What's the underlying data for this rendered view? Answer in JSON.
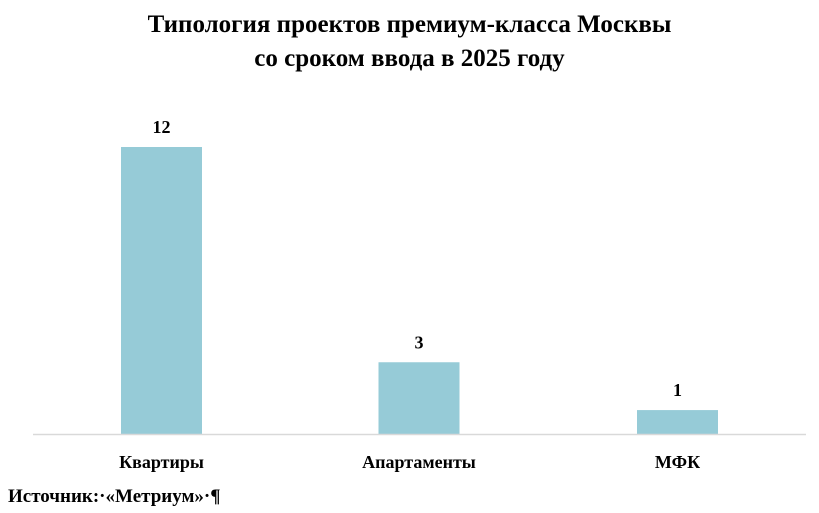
{
  "chart_data": {
    "type": "bar",
    "title_lines": [
      "Типология проектов премиум-класса Москвы",
      "со сроком ввода в 2025 году"
    ],
    "categories": [
      "Квартиры",
      "Апартаменты",
      "МФК"
    ],
    "values": [
      12,
      3,
      1
    ],
    "data_labels": [
      "12",
      "3",
      "1"
    ],
    "xlabel": "",
    "ylabel": "",
    "ylim": [
      0,
      12
    ],
    "grid": false,
    "legend": "none",
    "colors": {
      "bar": "#96CBD7",
      "axis": "#D9D9D9"
    }
  },
  "footer": {
    "source": "Источник:·«Метриум»·¶"
  }
}
